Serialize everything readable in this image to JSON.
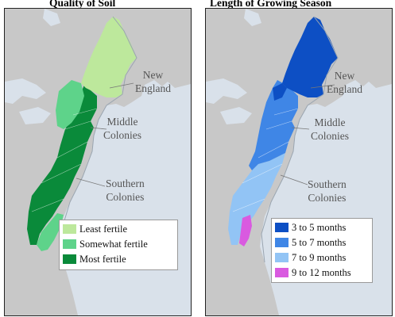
{
  "left_panel": {
    "title": "Quality of Soil",
    "regions": {
      "new_england": [
        "New",
        "England"
      ],
      "middle": [
        "Middle",
        "Colonies"
      ],
      "southern": [
        "Southern",
        "Colonies"
      ]
    },
    "legend": [
      {
        "label": "Least fertile",
        "color": "#bde89c"
      },
      {
        "label": "Somewhat fertile",
        "color": "#5ed38a"
      },
      {
        "label": "Most fertile",
        "color": "#0a8a3a"
      }
    ]
  },
  "right_panel": {
    "title": "Length of Growing Season",
    "regions": {
      "new_england": [
        "New",
        "England"
      ],
      "middle": [
        "Middle",
        "Colonies"
      ],
      "southern": [
        "Southern",
        "Colonies"
      ]
    },
    "legend": [
      {
        "label": "3 to 5 months",
        "color": "#0d4fc4"
      },
      {
        "label": "5 to 7 months",
        "color": "#3f86e6"
      },
      {
        "label": "7 to 9 months",
        "color": "#92c4f5"
      },
      {
        "label": "9 to 12 months",
        "color": "#d95ae0"
      }
    ]
  },
  "colors": {
    "water": "#d9e1ea",
    "land": "#c8c8c8",
    "border_land": "#ffffff"
  }
}
